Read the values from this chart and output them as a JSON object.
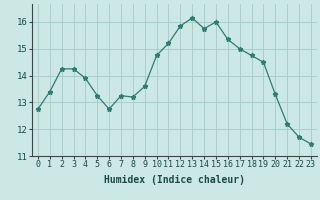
{
  "x": [
    0,
    1,
    2,
    3,
    4,
    5,
    6,
    7,
    8,
    9,
    10,
    11,
    12,
    13,
    14,
    15,
    16,
    17,
    18,
    19,
    20,
    21,
    22,
    23
  ],
  "y": [
    12.75,
    13.4,
    14.25,
    14.25,
    13.9,
    13.25,
    12.75,
    13.25,
    13.2,
    13.6,
    14.75,
    15.2,
    15.85,
    16.15,
    15.75,
    16.0,
    15.35,
    15.0,
    14.75,
    14.5,
    13.3,
    12.2,
    11.7,
    11.45
  ],
  "line_color": "#2e7d6e",
  "marker": "*",
  "marker_size": 3.5,
  "bg_color": "#cce8e4",
  "grid_color": "#aacfcc",
  "xlabel": "Humidex (Indice chaleur)",
  "ylim": [
    11,
    16.67
  ],
  "yticks": [
    11,
    12,
    13,
    14,
    15,
    16
  ],
  "xticks": [
    0,
    1,
    2,
    3,
    4,
    5,
    6,
    7,
    8,
    9,
    10,
    11,
    12,
    13,
    14,
    15,
    16,
    17,
    18,
    19,
    20,
    21,
    22,
    23
  ],
  "xtick_labels": [
    "0",
    "1",
    "2",
    "3",
    "4",
    "5",
    "6",
    "7",
    "8",
    "9",
    "10",
    "11",
    "12",
    "13",
    "14",
    "15",
    "16",
    "17",
    "18",
    "19",
    "20",
    "21",
    "22",
    "23"
  ],
  "tick_fontsize": 6.0,
  "xlabel_fontsize": 7.0,
  "ytick_fontsize": 6.5
}
